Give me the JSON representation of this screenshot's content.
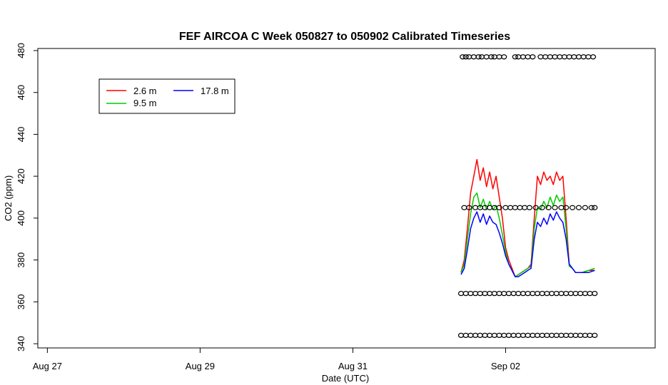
{
  "chart_data": {
    "type": "line",
    "title": "FEF AIRCOA C  Week 050827 to 050902  Calibrated Timeseries",
    "xlabel": "Date (UTC)",
    "ylabel": "CO2 (ppm)",
    "xlim": [
      "2005-08-26 21:00",
      "2005-09-03 23:00"
    ],
    "ylim": [
      338,
      481
    ],
    "x_ticks": [
      {
        "date": "2005-08-27",
        "label": "Aug 27"
      },
      {
        "date": "2005-08-29",
        "label": "Aug 29"
      },
      {
        "date": "2005-08-31",
        "label": "Aug 31"
      },
      {
        "date": "2005-09-02",
        "label": "Sep 02"
      }
    ],
    "y_ticks": [
      340,
      360,
      380,
      400,
      420,
      440,
      460,
      480
    ],
    "legend": {
      "placement": "top-left",
      "entries": [
        {
          "label": "2.6 m",
          "color": "#ff0000"
        },
        {
          "label": "9.5 m",
          "color": "#00cc00"
        },
        {
          "label": "17.8 m",
          "color": "#0000ff"
        }
      ]
    },
    "series": [
      {
        "name": "2.6 m",
        "color": "#ff0000",
        "points": [
          [
            "2005-09-01 10:00",
            374
          ],
          [
            "2005-09-01 11:00",
            380
          ],
          [
            "2005-09-01 12:00",
            395
          ],
          [
            "2005-09-01 13:00",
            412
          ],
          [
            "2005-09-01 14:00",
            420
          ],
          [
            "2005-09-01 15:00",
            428
          ],
          [
            "2005-09-01 16:00",
            418
          ],
          [
            "2005-09-01 17:00",
            424
          ],
          [
            "2005-09-01 18:00",
            415
          ],
          [
            "2005-09-01 19:00",
            422
          ],
          [
            "2005-09-01 20:00",
            414
          ],
          [
            "2005-09-01 21:00",
            420
          ],
          [
            "2005-09-01 22:00",
            410
          ],
          [
            "2005-09-01 23:00",
            400
          ],
          [
            "2005-09-02 00:00",
            386
          ],
          [
            "2005-09-02 01:00",
            380
          ],
          [
            "2005-09-02 02:00",
            376
          ],
          [
            "2005-09-02 03:00",
            372
          ],
          [
            "2005-09-02 04:00",
            373
          ],
          [
            "2005-09-02 05:00",
            374
          ],
          [
            "2005-09-02 06:00",
            375
          ],
          [
            "2005-09-02 07:00",
            376
          ],
          [
            "2005-09-02 08:00",
            378
          ],
          [
            "2005-09-02 09:00",
            400
          ],
          [
            "2005-09-02 10:00",
            420
          ],
          [
            "2005-09-02 11:00",
            416
          ],
          [
            "2005-09-02 12:00",
            422
          ],
          [
            "2005-09-02 13:00",
            418
          ],
          [
            "2005-09-02 14:00",
            420
          ],
          [
            "2005-09-02 15:00",
            416
          ],
          [
            "2005-09-02 16:00",
            422
          ],
          [
            "2005-09-02 17:00",
            418
          ],
          [
            "2005-09-02 18:00",
            420
          ],
          [
            "2005-09-02 19:00",
            400
          ],
          [
            "2005-09-02 20:00",
            378
          ],
          [
            "2005-09-02 21:00",
            376
          ],
          [
            "2005-09-02 22:00",
            374
          ],
          [
            "2005-09-03 00:00",
            374
          ],
          [
            "2005-09-03 02:00",
            375
          ],
          [
            "2005-09-03 04:00",
            375
          ]
        ]
      },
      {
        "name": "9.5 m",
        "color": "#00cc00",
        "points": [
          [
            "2005-09-01 10:00",
            374
          ],
          [
            "2005-09-01 11:00",
            378
          ],
          [
            "2005-09-01 12:00",
            390
          ],
          [
            "2005-09-01 13:00",
            402
          ],
          [
            "2005-09-01 14:00",
            410
          ],
          [
            "2005-09-01 15:00",
            412
          ],
          [
            "2005-09-01 16:00",
            405
          ],
          [
            "2005-09-01 17:00",
            409
          ],
          [
            "2005-09-01 18:00",
            404
          ],
          [
            "2005-09-01 19:00",
            408
          ],
          [
            "2005-09-01 20:00",
            404
          ],
          [
            "2005-09-01 21:00",
            406
          ],
          [
            "2005-09-01 22:00",
            400
          ],
          [
            "2005-09-01 23:00",
            392
          ],
          [
            "2005-09-02 00:00",
            384
          ],
          [
            "2005-09-02 01:00",
            378
          ],
          [
            "2005-09-02 02:00",
            375
          ],
          [
            "2005-09-02 03:00",
            372
          ],
          [
            "2005-09-02 04:00",
            373
          ],
          [
            "2005-09-02 05:00",
            374
          ],
          [
            "2005-09-02 06:00",
            375
          ],
          [
            "2005-09-02 07:00",
            376
          ],
          [
            "2005-09-02 08:00",
            377
          ],
          [
            "2005-09-02 09:00",
            395
          ],
          [
            "2005-09-02 10:00",
            405
          ],
          [
            "2005-09-02 11:00",
            404
          ],
          [
            "2005-09-02 12:00",
            408
          ],
          [
            "2005-09-02 13:00",
            405
          ],
          [
            "2005-09-02 14:00",
            410
          ],
          [
            "2005-09-02 15:00",
            406
          ],
          [
            "2005-09-02 16:00",
            411
          ],
          [
            "2005-09-02 17:00",
            408
          ],
          [
            "2005-09-02 18:00",
            410
          ],
          [
            "2005-09-02 19:00",
            395
          ],
          [
            "2005-09-02 20:00",
            377
          ],
          [
            "2005-09-02 21:00",
            376
          ],
          [
            "2005-09-02 22:00",
            374
          ],
          [
            "2005-09-03 00:00",
            374
          ],
          [
            "2005-09-03 02:00",
            375
          ],
          [
            "2005-09-03 04:00",
            376
          ]
        ]
      },
      {
        "name": "17.8 m",
        "color": "#0000ff",
        "points": [
          [
            "2005-09-01 10:00",
            373
          ],
          [
            "2005-09-01 11:00",
            376
          ],
          [
            "2005-09-01 12:00",
            385
          ],
          [
            "2005-09-01 13:00",
            395
          ],
          [
            "2005-09-01 14:00",
            400
          ],
          [
            "2005-09-01 15:00",
            403
          ],
          [
            "2005-09-01 16:00",
            398
          ],
          [
            "2005-09-01 17:00",
            402
          ],
          [
            "2005-09-01 18:00",
            397
          ],
          [
            "2005-09-01 19:00",
            401
          ],
          [
            "2005-09-01 20:00",
            398
          ],
          [
            "2005-09-01 21:00",
            397
          ],
          [
            "2005-09-01 22:00",
            393
          ],
          [
            "2005-09-01 23:00",
            388
          ],
          [
            "2005-09-02 00:00",
            382
          ],
          [
            "2005-09-02 01:00",
            378
          ],
          [
            "2005-09-02 02:00",
            375
          ],
          [
            "2005-09-02 03:00",
            372
          ],
          [
            "2005-09-02 04:00",
            372
          ],
          [
            "2005-09-02 05:00",
            373
          ],
          [
            "2005-09-02 06:00",
            374
          ],
          [
            "2005-09-02 07:00",
            375
          ],
          [
            "2005-09-02 08:00",
            376
          ],
          [
            "2005-09-02 09:00",
            390
          ],
          [
            "2005-09-02 10:00",
            398
          ],
          [
            "2005-09-02 11:00",
            396
          ],
          [
            "2005-09-02 12:00",
            400
          ],
          [
            "2005-09-02 13:00",
            397
          ],
          [
            "2005-09-02 14:00",
            402
          ],
          [
            "2005-09-02 15:00",
            399
          ],
          [
            "2005-09-02 16:00",
            403
          ],
          [
            "2005-09-02 17:00",
            400
          ],
          [
            "2005-09-02 18:00",
            398
          ],
          [
            "2005-09-02 19:00",
            390
          ],
          [
            "2005-09-02 20:00",
            378
          ],
          [
            "2005-09-02 21:00",
            376
          ],
          [
            "2005-09-02 22:00",
            374
          ],
          [
            "2005-09-03 00:00",
            374
          ],
          [
            "2005-09-03 02:00",
            374
          ],
          [
            "2005-09-03 04:00",
            375
          ]
        ]
      }
    ],
    "reference_markers": [
      {
        "y": 477,
        "dates": [
          "2005-09-01 10:30",
          "2005-09-01 11:30",
          "2005-09-01 12:30",
          "2005-09-01 14:00",
          "2005-09-01 15:30",
          "2005-09-01 16:30",
          "2005-09-01 18:00",
          "2005-09-01 19:30",
          "2005-09-01 20:30",
          "2005-09-01 22:00",
          "2005-09-01 23:30",
          "2005-09-02 03:00",
          "2005-09-02 04:00",
          "2005-09-02 05:30",
          "2005-09-02 07:00",
          "2005-09-02 08:30",
          "2005-09-02 11:00",
          "2005-09-02 12:30",
          "2005-09-02 14:00",
          "2005-09-02 15:30",
          "2005-09-02 17:00",
          "2005-09-02 18:30",
          "2005-09-02 20:00",
          "2005-09-02 21:30",
          "2005-09-02 23:00",
          "2005-09-03 00:30",
          "2005-09-03 02:00",
          "2005-09-03 03:30"
        ]
      },
      {
        "y": 405,
        "dates": [
          "2005-09-01 11:00",
          "2005-09-01 12:30",
          "2005-09-01 14:30",
          "2005-09-01 16:00",
          "2005-09-01 17:30",
          "2005-09-01 19:00",
          "2005-09-01 20:30",
          "2005-09-01 22:00",
          "2005-09-02 00:00",
          "2005-09-02 01:30",
          "2005-09-02 03:00",
          "2005-09-02 04:30",
          "2005-09-02 06:00",
          "2005-09-02 07:30",
          "2005-09-02 09:30",
          "2005-09-02 11:30",
          "2005-09-02 13:30",
          "2005-09-02 15:30",
          "2005-09-02 17:30",
          "2005-09-02 19:00",
          "2005-09-02 21:00",
          "2005-09-02 23:00",
          "2005-09-03 01:00",
          "2005-09-03 03:00",
          "2005-09-03 04:00"
        ]
      },
      {
        "y": 364,
        "dates": [
          "2005-09-01 10:00",
          "2005-09-01 11:30",
          "2005-09-01 13:00",
          "2005-09-01 14:30",
          "2005-09-01 16:00",
          "2005-09-01 17:30",
          "2005-09-01 19:00",
          "2005-09-01 20:30",
          "2005-09-01 22:00",
          "2005-09-01 23:30",
          "2005-09-02 01:00",
          "2005-09-02 02:30",
          "2005-09-02 04:00",
          "2005-09-02 05:30",
          "2005-09-02 07:00",
          "2005-09-02 08:30",
          "2005-09-02 10:00",
          "2005-09-02 11:30",
          "2005-09-02 13:00",
          "2005-09-02 14:30",
          "2005-09-02 16:00",
          "2005-09-02 17:30",
          "2005-09-02 19:00",
          "2005-09-02 20:30",
          "2005-09-02 22:00",
          "2005-09-02 23:30",
          "2005-09-03 01:00",
          "2005-09-03 02:30",
          "2005-09-03 04:00"
        ]
      },
      {
        "y": 344,
        "dates": [
          "2005-09-01 10:00",
          "2005-09-01 11:30",
          "2005-09-01 13:00",
          "2005-09-01 14:30",
          "2005-09-01 16:00",
          "2005-09-01 17:30",
          "2005-09-01 19:00",
          "2005-09-01 20:30",
          "2005-09-01 22:00",
          "2005-09-01 23:30",
          "2005-09-02 01:00",
          "2005-09-02 02:30",
          "2005-09-02 04:00",
          "2005-09-02 05:30",
          "2005-09-02 07:00",
          "2005-09-02 08:30",
          "2005-09-02 10:00",
          "2005-09-02 11:30",
          "2005-09-02 13:00",
          "2005-09-02 14:30",
          "2005-09-02 16:00",
          "2005-09-02 17:30",
          "2005-09-02 19:00",
          "2005-09-02 20:30",
          "2005-09-02 22:00",
          "2005-09-02 23:30",
          "2005-09-03 01:00",
          "2005-09-03 02:30",
          "2005-09-03 04:00"
        ]
      }
    ]
  }
}
